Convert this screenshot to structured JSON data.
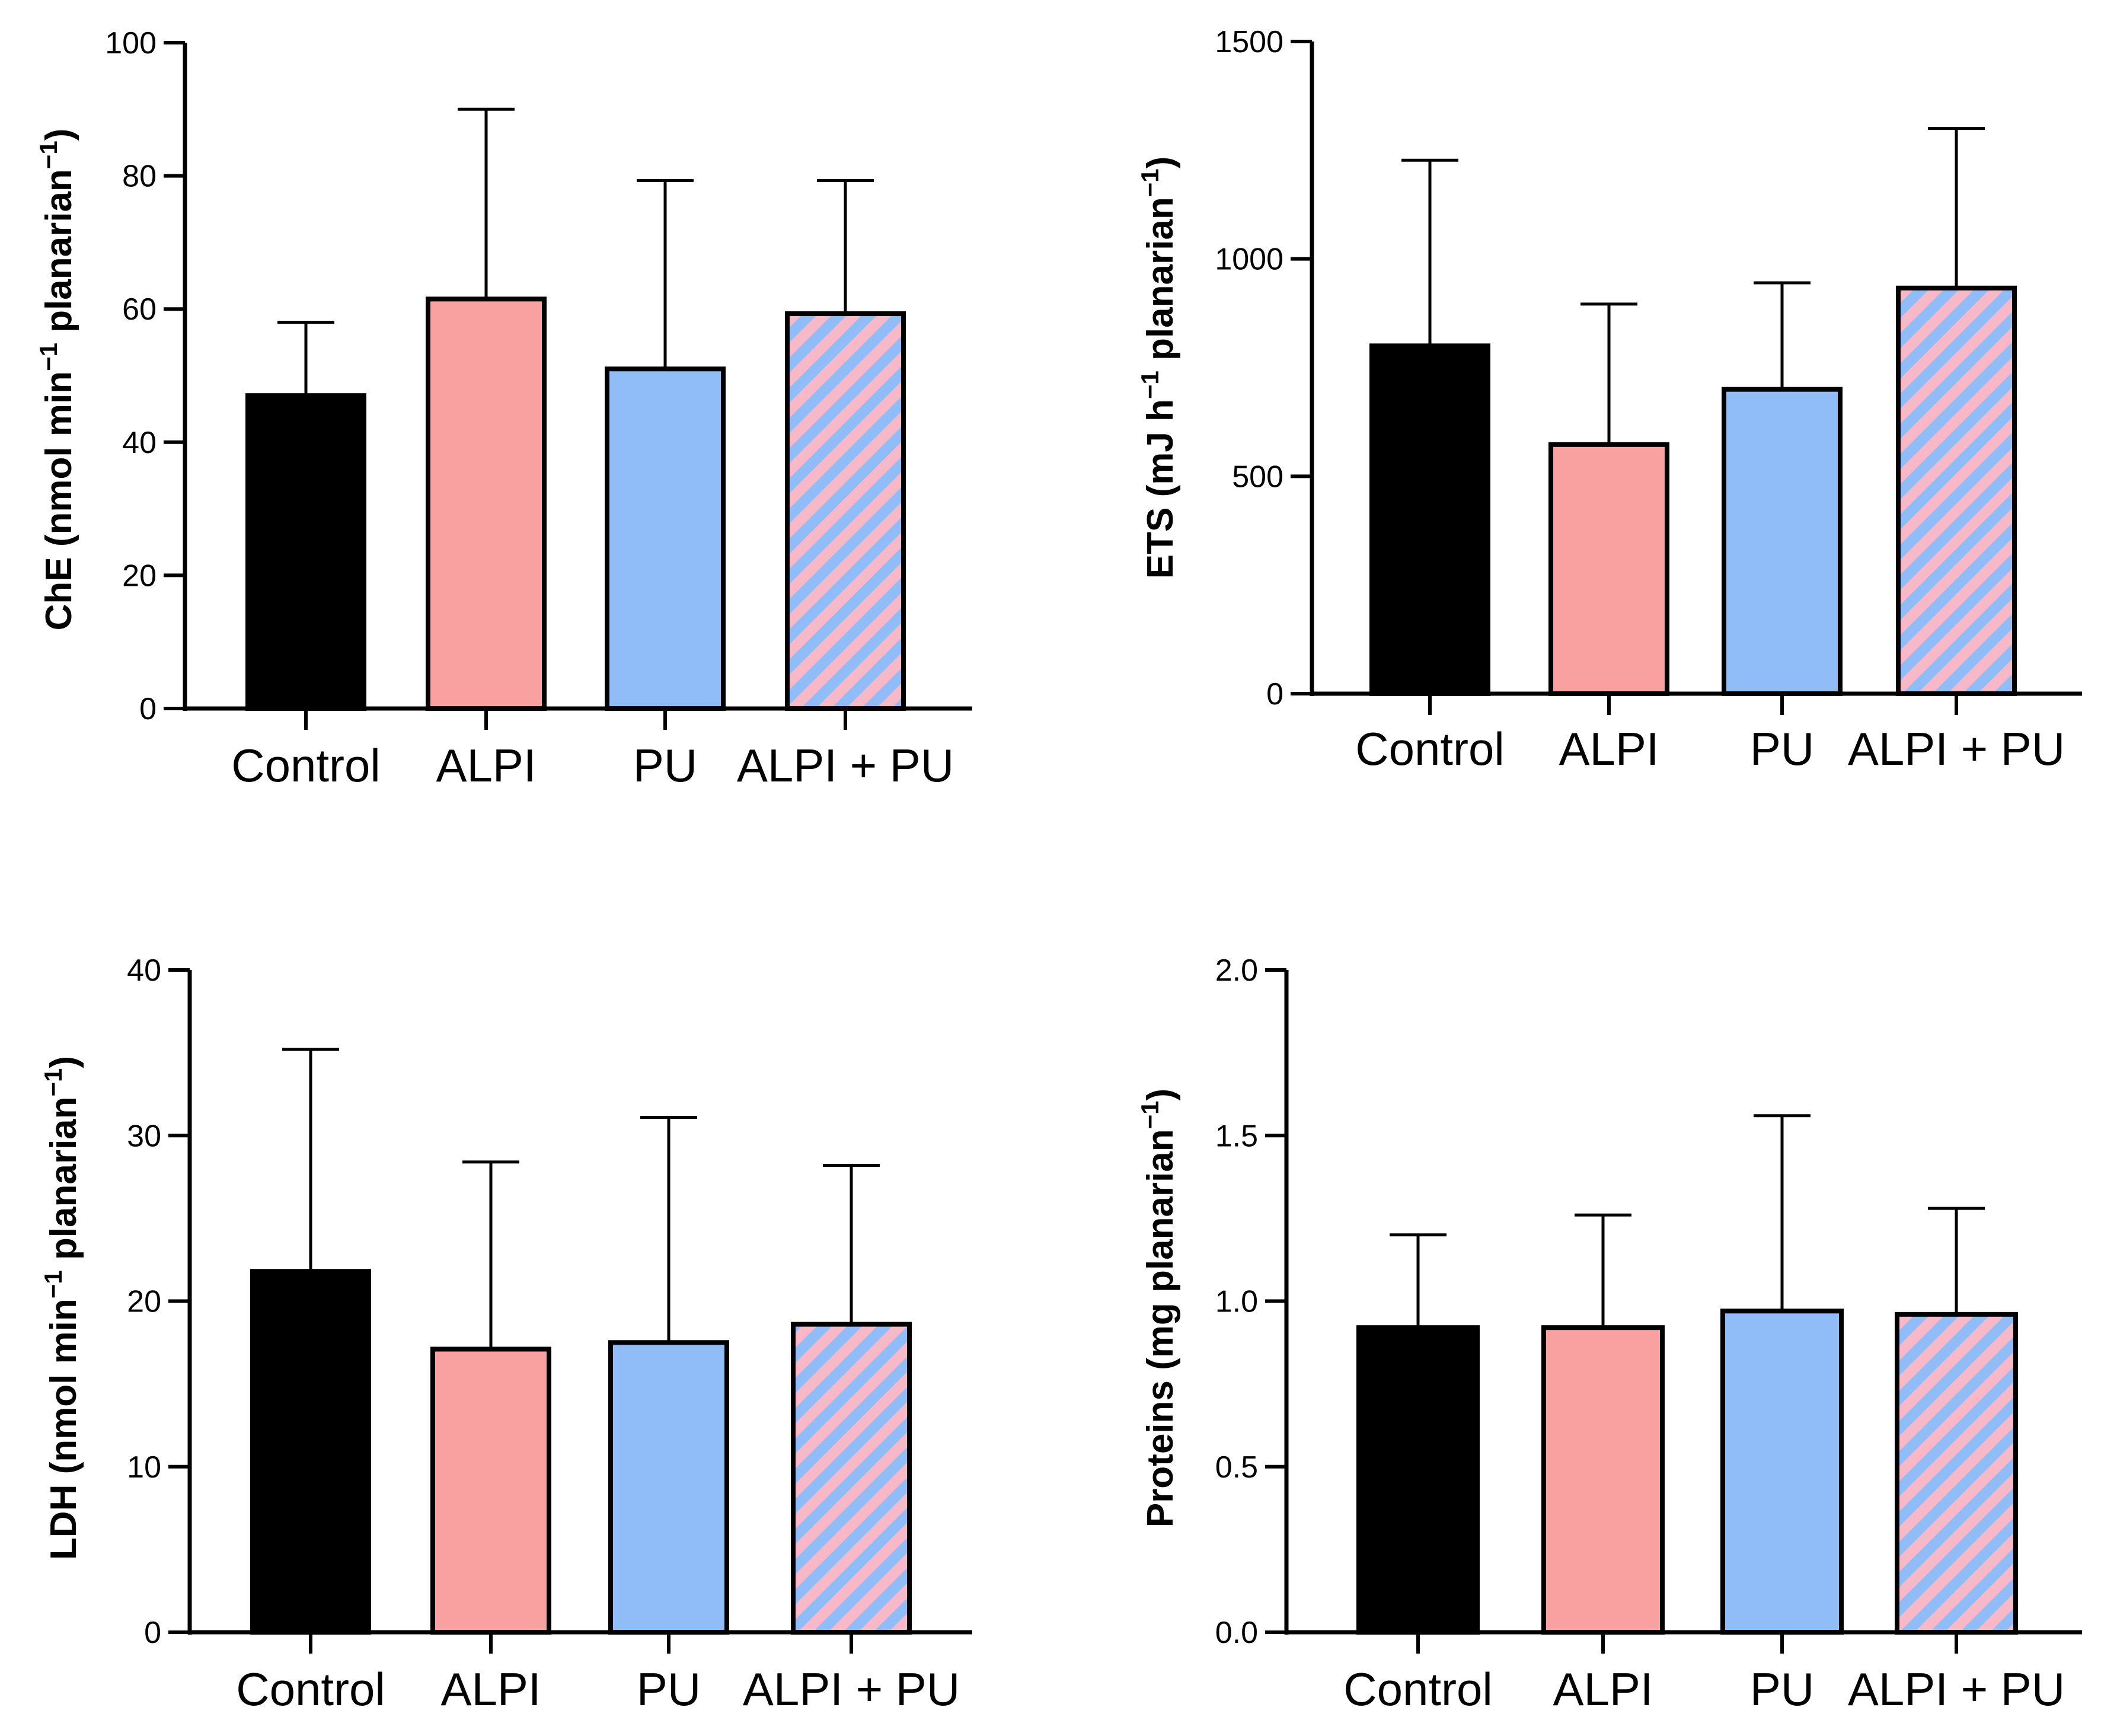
{
  "colors": {
    "control": "#000000",
    "alpi": "#f9a0a0",
    "pu": "#90bdf8",
    "combo_stripe_a": "#90bdf8",
    "combo_stripe_b": "#f7b8c8",
    "axis": "#000000"
  },
  "chart_data": [
    {
      "type": "bar",
      "panel": "top-left",
      "categories": [
        "Control",
        "ALPI",
        "PU",
        "ALPI + PU"
      ],
      "values": [
        47,
        61.5,
        51,
        59.3
      ],
      "errors": [
        11,
        28.5,
        28.3,
        20
      ],
      "ylabel": {
        "pre": "ChE (nmol min",
        "sup1": "−1",
        "mid": " planarian",
        "sup2": "−1",
        "post": ")"
      },
      "ylim": [
        0,
        100
      ],
      "yticks": [
        "0",
        "20",
        "40",
        "60",
        "80",
        "100"
      ],
      "grid": false
    },
    {
      "type": "bar",
      "panel": "top-right",
      "categories": [
        "Control",
        "ALPI",
        "PU",
        "ALPI + PU"
      ],
      "values": [
        800,
        573,
        700,
        933
      ],
      "errors": [
        427,
        323,
        245,
        367
      ],
      "ylabel": {
        "pre": "ETS (mJ h",
        "sup1": "−1",
        "mid": " planarian",
        "sup2": "−1",
        "post": ")"
      },
      "ylim": [
        0,
        1500
      ],
      "yticks": [
        "0",
        "500",
        "1000",
        "1500"
      ],
      "grid": false
    },
    {
      "type": "bar",
      "panel": "bottom-left",
      "categories": [
        "Control",
        "ALPI",
        "PU",
        "ALPI + PU"
      ],
      "values": [
        21.8,
        17.1,
        17.5,
        18.6
      ],
      "errors": [
        13.4,
        11.3,
        13.6,
        9.6
      ],
      "ylabel": {
        "pre": "LDH (nmol min",
        "sup1": "−1",
        "mid": " planarian",
        "sup2": "−1",
        "post": ")"
      },
      "ylim": [
        0,
        40
      ],
      "yticks": [
        "0",
        "10",
        "20",
        "30",
        "40"
      ],
      "grid": false
    },
    {
      "type": "bar",
      "panel": "bottom-right",
      "categories": [
        "Control",
        "ALPI",
        "PU",
        "ALPI + PU"
      ],
      "values": [
        0.92,
        0.92,
        0.97,
        0.96
      ],
      "errors": [
        0.28,
        0.34,
        0.59,
        0.32
      ],
      "ylabel": {
        "pre": "Proteins (mg planarian",
        "sup1": "−1",
        "mid": "",
        "sup2": "",
        "post": ")"
      },
      "ylim": [
        0,
        2
      ],
      "yticks": [
        "0.0",
        "0.5",
        "1.0",
        "1.5",
        "2.0"
      ],
      "grid": false
    }
  ]
}
